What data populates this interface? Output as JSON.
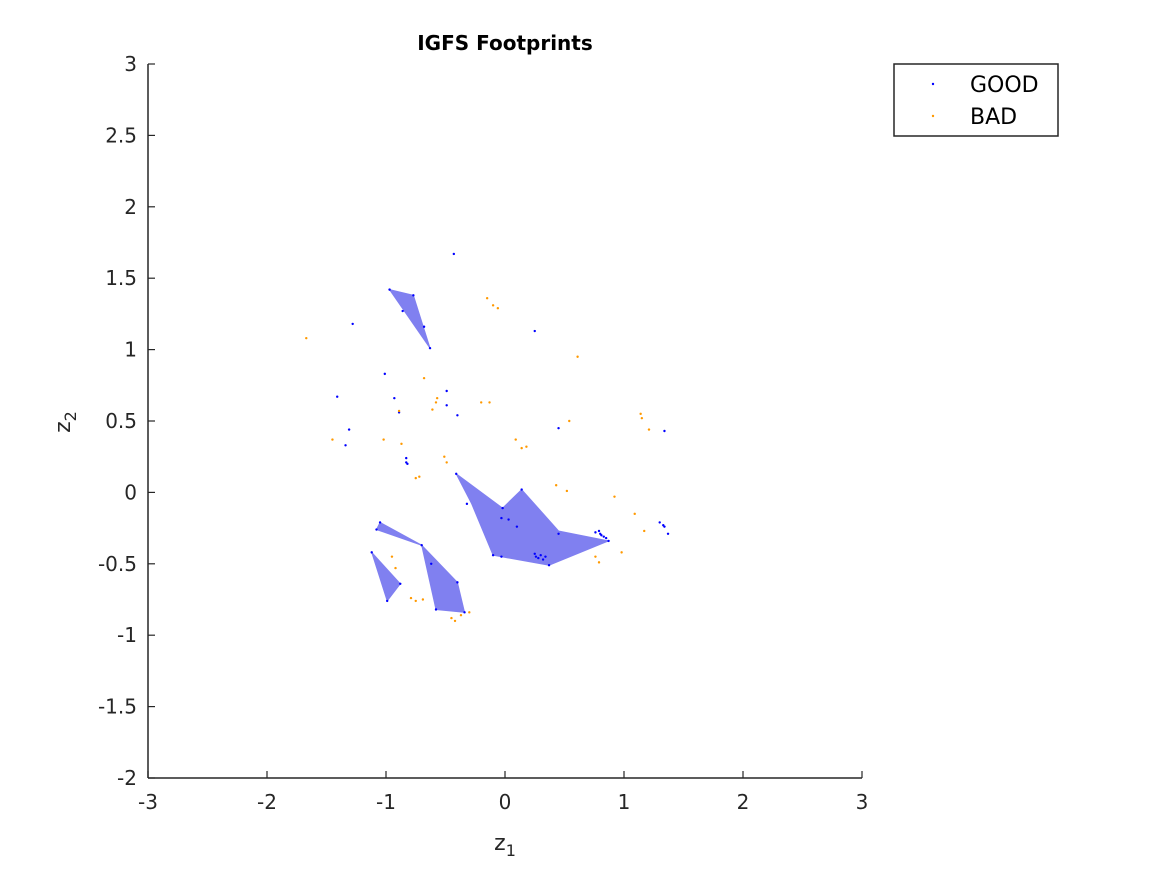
{
  "chart_data": {
    "type": "scatter",
    "title": "IGFS Footprints",
    "xlabel": "z",
    "xlabel_sub": "1",
    "ylabel": "z",
    "ylabel_sub": "2",
    "xlim": [
      -3,
      3
    ],
    "ylim": [
      -2,
      3
    ],
    "xticks": [
      -3,
      -2,
      -1,
      0,
      1,
      2,
      3
    ],
    "yticks": [
      -2,
      -1.5,
      -1,
      -0.5,
      0,
      0.5,
      1,
      1.5,
      2,
      2.5,
      3
    ],
    "xtick_labels": [
      "-3",
      "-2",
      "-1",
      "0",
      "1",
      "2",
      "3"
    ],
    "ytick_labels": [
      "-2",
      "-1.5",
      "-1",
      "-0.5",
      "0",
      "0.5",
      "1",
      "1.5",
      "2",
      "2.5",
      "3"
    ],
    "grid": false,
    "legend_position": "top-right",
    "footprint_color": "#8080f0",
    "series": [
      {
        "name": "GOOD",
        "color": "#0000ff",
        "points": [
          [
            -0.43,
            1.67
          ],
          [
            -0.97,
            1.42
          ],
          [
            -0.77,
            1.38
          ],
          [
            -0.86,
            1.27
          ],
          [
            -0.68,
            1.16
          ],
          [
            -0.63,
            1.01
          ],
          [
            -1.28,
            1.18
          ],
          [
            0.25,
            1.13
          ],
          [
            -1.01,
            0.83
          ],
          [
            -1.41,
            0.67
          ],
          [
            -0.49,
            0.71
          ],
          [
            -0.93,
            0.66
          ],
          [
            -0.89,
            0.56
          ],
          [
            -0.49,
            0.61
          ],
          [
            -0.4,
            0.54
          ],
          [
            -1.31,
            0.44
          ],
          [
            -1.34,
            0.33
          ],
          [
            0.45,
            0.45
          ],
          [
            -0.83,
            0.24
          ],
          [
            -0.83,
            0.21
          ],
          [
            -0.82,
            0.2
          ],
          [
            -0.41,
            0.13
          ],
          [
            1.34,
            0.43
          ],
          [
            0.14,
            0.02
          ],
          [
            -0.32,
            -0.08
          ],
          [
            -0.02,
            -0.11
          ],
          [
            -0.03,
            -0.18
          ],
          [
            0.03,
            -0.19
          ],
          [
            0.1,
            -0.24
          ],
          [
            -1.05,
            -0.21
          ],
          [
            -1.08,
            -0.26
          ],
          [
            -0.7,
            -0.37
          ],
          [
            -1.12,
            -0.42
          ],
          [
            -0.62,
            -0.5
          ],
          [
            -0.4,
            -0.63
          ],
          [
            -0.88,
            -0.64
          ],
          [
            -0.99,
            -0.76
          ],
          [
            -0.58,
            -0.82
          ],
          [
            -0.34,
            -0.84
          ],
          [
            -0.1,
            -0.44
          ],
          [
            -0.03,
            -0.45
          ],
          [
            0.37,
            -0.51
          ],
          [
            0.45,
            -0.29
          ],
          [
            0.25,
            -0.43
          ],
          [
            0.28,
            -0.46
          ],
          [
            0.3,
            -0.44
          ],
          [
            0.32,
            -0.47
          ],
          [
            0.34,
            -0.45
          ],
          [
            0.26,
            -0.45
          ],
          [
            0.76,
            -0.28
          ],
          [
            0.79,
            -0.27
          ],
          [
            0.81,
            -0.3
          ],
          [
            0.83,
            -0.31
          ],
          [
            0.85,
            -0.32
          ],
          [
            0.87,
            -0.34
          ],
          [
            0.8,
            -0.29
          ],
          [
            1.3,
            -0.21
          ],
          [
            1.33,
            -0.23
          ],
          [
            1.34,
            -0.24
          ],
          [
            1.37,
            -0.29
          ]
        ]
      },
      {
        "name": "BAD",
        "color": "#ff9900",
        "points": [
          [
            -1.67,
            1.08
          ],
          [
            -0.15,
            1.36
          ],
          [
            -0.1,
            1.31
          ],
          [
            -0.06,
            1.29
          ],
          [
            0.61,
            0.95
          ],
          [
            -0.68,
            0.8
          ],
          [
            -0.61,
            0.58
          ],
          [
            -0.58,
            0.63
          ],
          [
            -0.57,
            0.66
          ],
          [
            -0.2,
            0.63
          ],
          [
            -0.13,
            0.63
          ],
          [
            0.54,
            0.5
          ],
          [
            1.14,
            0.55
          ],
          [
            1.15,
            0.52
          ],
          [
            1.21,
            0.44
          ],
          [
            -1.45,
            0.37
          ],
          [
            -1.02,
            0.37
          ],
          [
            -0.87,
            0.34
          ],
          [
            -0.89,
            0.57
          ],
          [
            0.09,
            0.37
          ],
          [
            0.14,
            0.31
          ],
          [
            0.18,
            0.32
          ],
          [
            0.43,
            0.05
          ],
          [
            0.52,
            0.01
          ],
          [
            0.92,
            -0.03
          ],
          [
            1.09,
            -0.15
          ],
          [
            1.17,
            -0.27
          ],
          [
            -0.51,
            0.25
          ],
          [
            -0.49,
            0.21
          ],
          [
            -0.72,
            0.11
          ],
          [
            -0.75,
            0.1
          ],
          [
            0.76,
            -0.45
          ],
          [
            0.79,
            -0.49
          ],
          [
            0.98,
            -0.42
          ],
          [
            -0.95,
            -0.45
          ],
          [
            -0.92,
            -0.53
          ],
          [
            -0.79,
            -0.74
          ],
          [
            -0.75,
            -0.76
          ],
          [
            -0.69,
            -0.75
          ],
          [
            -0.45,
            -0.88
          ],
          [
            -0.42,
            -0.9
          ],
          [
            -0.3,
            -0.84
          ],
          [
            -0.37,
            -0.86
          ]
        ]
      }
    ],
    "footprints": [
      [
        [
          -0.97,
          1.42
        ],
        [
          -0.77,
          1.38
        ],
        [
          -0.63,
          1.01
        ]
      ],
      [
        [
          -0.41,
          0.13
        ],
        [
          -0.02,
          -0.11
        ],
        [
          0.14,
          0.02
        ],
        [
          0.45,
          -0.27
        ],
        [
          0.87,
          -0.34
        ],
        [
          0.37,
          -0.51
        ],
        [
          -0.1,
          -0.44
        ],
        [
          -0.28,
          -0.08
        ]
      ],
      [
        [
          -1.05,
          -0.21
        ],
        [
          -0.7,
          -0.37
        ],
        [
          -1.08,
          -0.26
        ]
      ],
      [
        [
          -0.7,
          -0.37
        ],
        [
          -0.4,
          -0.63
        ],
        [
          -0.34,
          -0.84
        ],
        [
          -0.58,
          -0.82
        ]
      ],
      [
        [
          -1.12,
          -0.42
        ],
        [
          -0.88,
          -0.64
        ],
        [
          -0.99,
          -0.76
        ]
      ]
    ]
  }
}
